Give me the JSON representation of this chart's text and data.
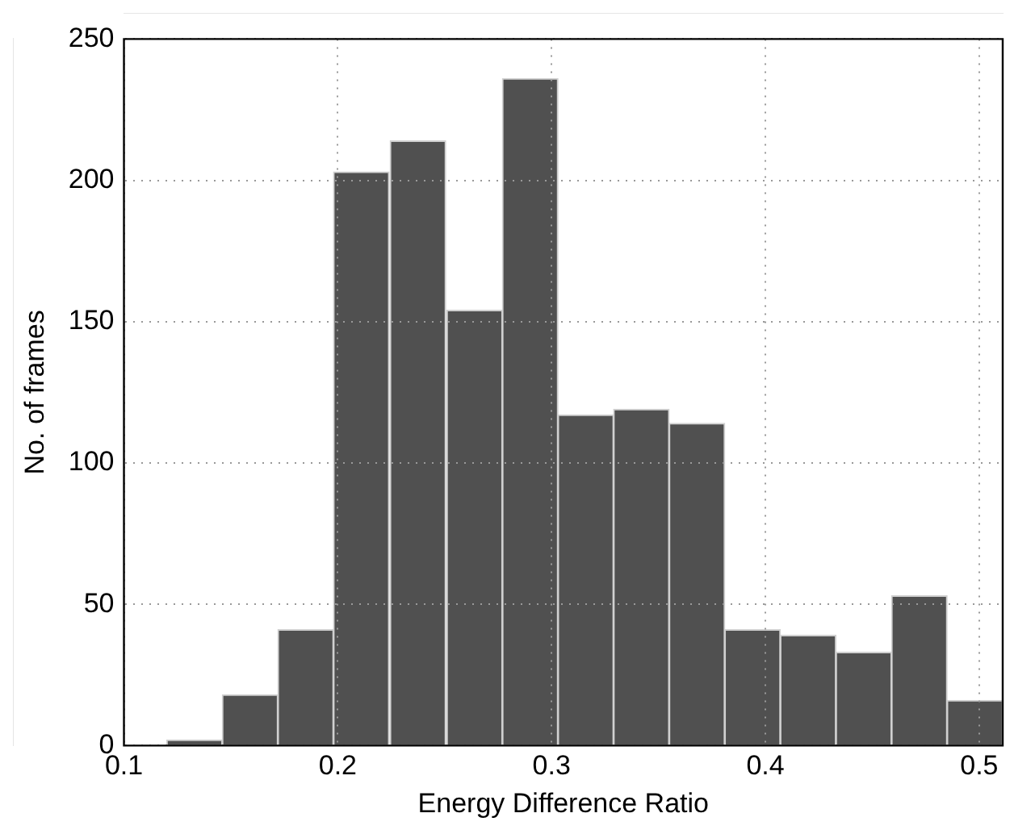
{
  "chart_data": {
    "type": "histogram",
    "xlabel": "Energy Difference Ratio",
    "ylabel": "No. of frames",
    "bins": [
      0.12,
      0.146,
      0.172,
      0.198,
      0.224,
      0.251,
      0.277,
      0.303,
      0.329,
      0.355,
      0.381,
      0.407,
      0.433,
      0.459,
      0.485,
      0.511
    ],
    "values": [
      2,
      18,
      41,
      203,
      214,
      154,
      236,
      117,
      119,
      114,
      41,
      39,
      33,
      53,
      16
    ],
    "color": "#505050",
    "xlim": [
      0.1,
      0.511
    ],
    "xticks": [
      0.1,
      0.2,
      0.3,
      0.4,
      0.5
    ],
    "ylim": [
      0,
      250
    ],
    "yticks": [
      0,
      50,
      100,
      150,
      200,
      250
    ],
    "grid": true
  }
}
